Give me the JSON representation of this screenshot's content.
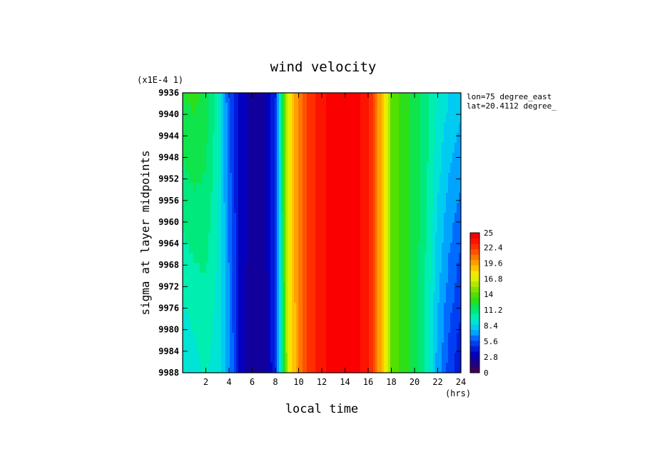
{
  "chart_data": {
    "type": "heatmap",
    "title": "wind velocity",
    "scale_label": "(x1E-4 1)",
    "xlabel": "local time",
    "x_unit": "(hrs)",
    "ylabel": "sigma at layer midpoints",
    "annotations": [
      "lon=75 degree_east",
      "lat=20.4112 degree_"
    ],
    "xlim": [
      0,
      24
    ],
    "ylim": [
      9936,
      9988
    ],
    "y_reversed": true,
    "x_ticks": [
      "2",
      "4",
      "6",
      "8",
      "10",
      "12",
      "14",
      "16",
      "18",
      "20",
      "22",
      "24"
    ],
    "y_ticks": [
      "9936",
      "9940",
      "9944",
      "9948",
      "9952",
      "9956",
      "9960",
      "9964",
      "9968",
      "9972",
      "9976",
      "9980",
      "9984",
      "9988"
    ],
    "colorbar": {
      "min": 0,
      "max": 25,
      "ticks": [
        "0",
        "2.8",
        "5.6",
        "8.4",
        "11.2",
        "14",
        "16.8",
        "19.6",
        "22.4",
        "25"
      ]
    },
    "values_top": [
      [
        0,
        12.5
      ],
      [
        1,
        12.8
      ],
      [
        2,
        12.2
      ],
      [
        3,
        10.0
      ],
      [
        4,
        5.5
      ],
      [
        5,
        3.0
      ],
      [
        6,
        2.0
      ],
      [
        7,
        1.8
      ],
      [
        8,
        5.0
      ],
      [
        9,
        16.5
      ],
      [
        10,
        21.0
      ],
      [
        11,
        23.0
      ],
      [
        12,
        24.3
      ],
      [
        13,
        25.0
      ],
      [
        14,
        25.0
      ],
      [
        15,
        24.8
      ],
      [
        16,
        24.0
      ],
      [
        17,
        20.0
      ],
      [
        18,
        14.5
      ],
      [
        19,
        13.0
      ],
      [
        20,
        12.2
      ],
      [
        21,
        11.0
      ],
      [
        22,
        9.5
      ],
      [
        23,
        8.5
      ],
      [
        24,
        8.0
      ]
    ],
    "values_bottom": [
      [
        0,
        8.5
      ],
      [
        1,
        9.0
      ],
      [
        2,
        9.6
      ],
      [
        3,
        9.0
      ],
      [
        4,
        7.0
      ],
      [
        5,
        3.0
      ],
      [
        6,
        1.8
      ],
      [
        7,
        1.5
      ],
      [
        8,
        4.5
      ],
      [
        9,
        16.0
      ],
      [
        10,
        21.0
      ],
      [
        11,
        23.0
      ],
      [
        12,
        24.3
      ],
      [
        13,
        25.0
      ],
      [
        14,
        25.0
      ],
      [
        15,
        24.8
      ],
      [
        16,
        24.0
      ],
      [
        17,
        20.0
      ],
      [
        18,
        14.5
      ],
      [
        19,
        13.0
      ],
      [
        20,
        12.2
      ],
      [
        21,
        10.0
      ],
      [
        22,
        7.0
      ],
      [
        23,
        5.0
      ],
      [
        24,
        3.5
      ]
    ]
  }
}
